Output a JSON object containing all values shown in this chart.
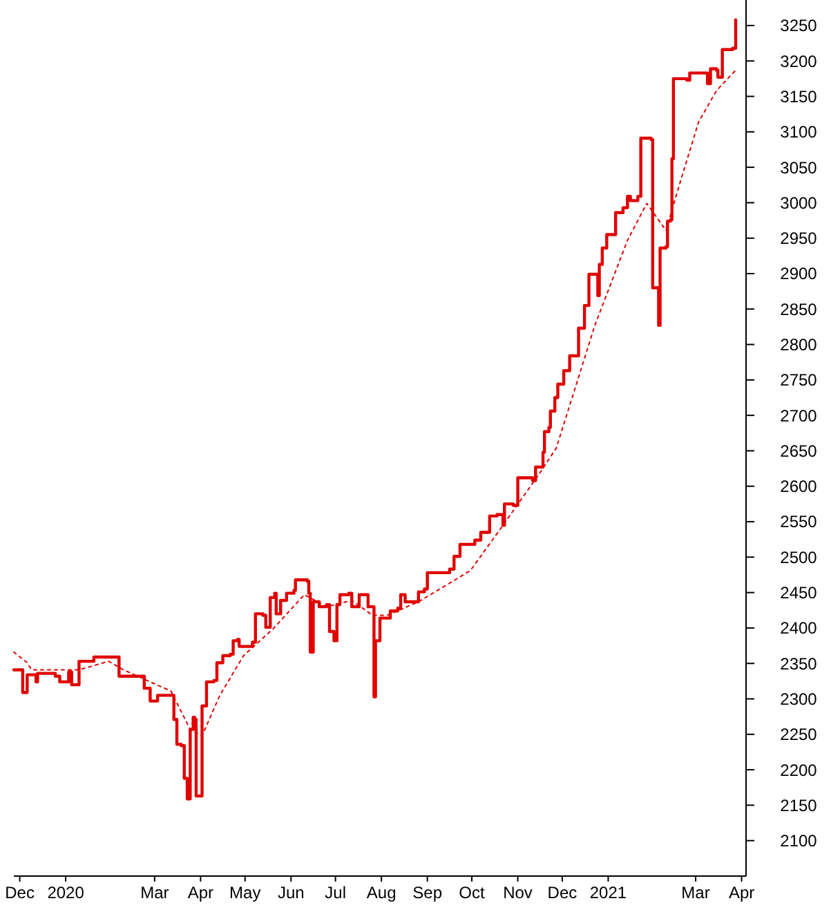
{
  "chart_data": {
    "type": "step",
    "xlim": [
      "2019-11-27",
      "2021-04-04"
    ],
    "ylim": [
      2050,
      3286
    ],
    "xticks": [
      {
        "value": "2019-12-01",
        "label": "Dec"
      },
      {
        "value": "2020-01-01",
        "label": "2020"
      },
      {
        "value": "2020-03-01",
        "label": "Mar"
      },
      {
        "value": "2020-04-01",
        "label": "Apr"
      },
      {
        "value": "2020-05-01",
        "label": "May"
      },
      {
        "value": "2020-06-01",
        "label": "Jun"
      },
      {
        "value": "2020-07-01",
        "label": "Jul"
      },
      {
        "value": "2020-08-01",
        "label": "Aug"
      },
      {
        "value": "2020-09-01",
        "label": "Sep"
      },
      {
        "value": "2020-10-01",
        "label": "Oct"
      },
      {
        "value": "2020-11-01",
        "label": "Nov"
      },
      {
        "value": "2020-12-01",
        "label": "Dec"
      },
      {
        "value": "2021-01-01",
        "label": "2021"
      },
      {
        "value": "2021-03-01",
        "label": "Mar"
      },
      {
        "value": "2021-04-01",
        "label": "Apr"
      }
    ],
    "yticks": [
      2100,
      2150,
      2200,
      2250,
      2300,
      2350,
      2400,
      2450,
      2500,
      2550,
      2600,
      2650,
      2700,
      2750,
      2800,
      2850,
      2900,
      2950,
      3000,
      3050,
      3100,
      3150,
      3200,
      3250
    ],
    "grid": false,
    "series": [
      {
        "type": "step",
        "color": "#e00000",
        "line_style": "solid",
        "x": [
          "2019-11-27",
          "2019-12-03",
          "2019-12-06",
          "2019-12-12",
          "2019-12-13",
          "2019-12-25",
          "2019-12-28",
          "2020-01-03",
          "2020-01-05",
          "2020-01-10",
          "2020-01-20",
          "2020-01-30",
          "2020-02-06",
          "2020-02-18",
          "2020-02-23",
          "2020-02-27",
          "2020-03-03",
          "2020-03-09",
          "2020-03-14",
          "2020-03-16",
          "2020-03-19",
          "2020-03-21",
          "2020-03-23",
          "2020-03-25",
          "2020-03-27",
          "2020-03-28",
          "2020-03-29",
          "2020-03-31",
          "2020-04-02",
          "2020-04-05",
          "2020-04-10",
          "2020-04-12",
          "2020-04-16",
          "2020-04-21",
          "2020-04-23",
          "2020-04-26",
          "2020-04-27",
          "2020-05-06",
          "2020-05-08",
          "2020-05-13",
          "2020-05-15",
          "2020-05-18",
          "2020-05-21",
          "2020-05-22",
          "2020-05-25",
          "2020-05-29",
          "2020-06-03",
          "2020-06-04",
          "2020-06-12",
          "2020-06-13",
          "2020-06-14",
          "2020-06-16",
          "2020-06-20",
          "2020-06-25",
          "2020-06-27",
          "2020-06-30",
          "2020-07-02",
          "2020-07-04",
          "2020-07-10",
          "2020-07-12",
          "2020-07-16",
          "2020-07-17",
          "2020-07-21",
          "2020-07-23",
          "2020-07-26",
          "2020-07-27",
          "2020-07-28",
          "2020-07-31",
          "2020-08-05",
          "2020-08-07",
          "2020-08-12",
          "2020-08-14",
          "2020-08-17",
          "2020-08-25",
          "2020-08-26",
          "2020-08-30",
          "2020-09-01",
          "2020-09-16",
          "2020-09-19",
          "2020-09-23",
          "2020-10-03",
          "2020-10-07",
          "2020-10-13",
          "2020-10-18",
          "2020-10-22",
          "2020-10-23",
          "2020-10-29",
          "2020-11-01",
          "2020-11-11",
          "2020-11-13",
          "2020-11-17",
          "2020-11-18",
          "2020-11-19",
          "2020-11-22",
          "2020-11-23",
          "2020-11-26",
          "2020-11-28",
          "2020-12-02",
          "2020-12-06",
          "2020-12-12",
          "2020-12-16",
          "2020-12-19",
          "2020-12-23",
          "2020-12-25",
          "2020-12-26",
          "2020-12-28",
          "2020-12-31",
          "2021-01-05",
          "2021-01-06",
          "2021-01-11",
          "2021-01-14",
          "2021-01-16",
          "2021-01-21",
          "2021-01-23",
          "2021-01-30",
          "2021-01-31",
          "2021-02-03",
          "2021-02-04",
          "2021-02-05",
          "2021-02-09",
          "2021-02-10",
          "2021-02-12",
          "2021-02-13",
          "2021-02-14",
          "2021-02-23",
          "2021-02-25",
          "2021-03-08",
          "2021-03-09",
          "2021-03-11",
          "2021-03-15",
          "2021-03-16",
          "2021-03-19",
          "2021-03-26",
          "2021-03-28"
        ],
        "values": [
          2341,
          2309,
          2334,
          2324,
          2336,
          2332,
          2324,
          2338,
          2320,
          2353,
          2359,
          2359,
          2332,
          2332,
          2315,
          2297,
          2305,
          2305,
          2271,
          2236,
          2234,
          2188,
          2159,
          2257,
          2274,
          2271,
          2163,
          2163,
          2290,
          2324,
          2326,
          2351,
          2361,
          2363,
          2382,
          2384,
          2374,
          2380,
          2420,
          2418,
          2401,
          2443,
          2449,
          2420,
          2439,
          2449,
          2453,
          2468,
          2466,
          2449,
          2366,
          2437,
          2430,
          2433,
          2395,
          2382,
          2433,
          2447,
          2449,
          2430,
          2430,
          2447,
          2447,
          2430,
          2430,
          2303,
          2382,
          2414,
          2414,
          2424,
          2428,
          2447,
          2437,
          2437,
          2451,
          2455,
          2478,
          2483,
          2501,
          2518,
          2524,
          2535,
          2558,
          2560,
          2545,
          2575,
          2573,
          2612,
          2608,
          2627,
          2627,
          2648,
          2677,
          2683,
          2706,
          2725,
          2744,
          2763,
          2784,
          2823,
          2855,
          2899,
          2899,
          2869,
          2913,
          2936,
          2955,
          2955,
          2986,
          2993,
          3009,
          3003,
          3009,
          3091,
          3089,
          2880,
          2880,
          2827,
          2936,
          2938,
          2974,
          2976,
          3062,
          3175,
          3173,
          3183,
          3183,
          3168,
          3189,
          3187,
          3177,
          3216,
          3218,
          3258
        ]
      },
      {
        "type": "line",
        "color": "#e00000",
        "line_style": "dotted",
        "x": [
          "2019-11-27",
          "2019-12-06",
          "2019-12-09",
          "2020-01-10",
          "2020-01-30",
          "2020-02-09",
          "2020-02-27",
          "2020-03-12",
          "2020-03-25",
          "2020-04-02",
          "2020-04-14",
          "2020-04-30",
          "2020-05-20",
          "2020-06-10",
          "2020-06-25",
          "2020-07-12",
          "2020-07-26",
          "2020-08-05",
          "2020-08-26",
          "2020-09-11",
          "2020-09-30",
          "2020-10-20",
          "2020-11-15",
          "2020-11-27",
          "2020-12-23",
          "2021-01-14",
          "2021-01-27",
          "2021-02-09",
          "2021-02-19",
          "2021-03-03",
          "2021-03-15",
          "2021-03-28"
        ],
        "values": [
          2366,
          2351,
          2341,
          2341,
          2353,
          2341,
          2324,
          2311,
          2257,
          2248,
          2305,
          2361,
          2399,
          2447,
          2430,
          2439,
          2418,
          2418,
          2437,
          2457,
          2481,
          2539,
          2616,
          2654,
          2827,
          2947,
          2999,
          2961,
          3032,
          3114,
          3158,
          3187
        ]
      }
    ]
  }
}
